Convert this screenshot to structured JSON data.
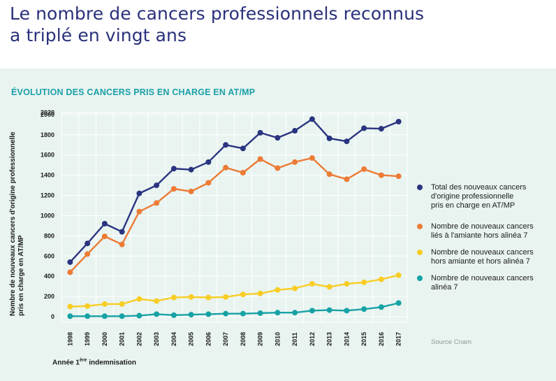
{
  "header": {
    "title_line1": "Le nombre de cancers professionnels reconnus",
    "title_line2": "a triplé en vingt ans"
  },
  "chart_data": {
    "type": "line",
    "title": "ÉVOLUTION DES CANCERS PRIS EN CHARGE EN AT/MP",
    "ylabel_line1": "Nombre de nouveaux cancers d'origine professionnelle",
    "ylabel_line2": "pris en charge en AT/MP",
    "xlabel_main": "Année 1",
    "xlabel_sup": "ère",
    "xlabel_rest": " indemnisation",
    "ylim": [
      0,
      2020
    ],
    "yticks": [
      0,
      200,
      400,
      600,
      800,
      1000,
      1200,
      1400,
      1600,
      1800,
      2000,
      2020
    ],
    "grid": true,
    "legend_position": "right",
    "source": "Source Cnam",
    "categories": [
      "1998",
      "1999",
      "2000",
      "2001",
      "2002",
      "2003",
      "2004",
      "2005",
      "2006",
      "2007",
      "2008",
      "2009",
      "2010",
      "2011",
      "2012",
      "2013",
      "2014",
      "2015",
      "2016",
      "2017"
    ],
    "series": [
      {
        "name_lines": [
          "Total des nouveaux cancers",
          "d'origine professionnelle",
          "pris en charge en AT/MP"
        ],
        "color": "#2a3480",
        "values": [
          540,
          725,
          920,
          840,
          1220,
          1300,
          1465,
          1455,
          1530,
          1700,
          1665,
          1820,
          1770,
          1840,
          1955,
          1765,
          1735,
          1865,
          1860,
          1930
        ]
      },
      {
        "name_lines": [
          "Nombre de nouveaux cancers",
          "liés à l'amiante hors alinéa 7"
        ],
        "color": "#ec7b35",
        "values": [
          440,
          620,
          795,
          715,
          1040,
          1125,
          1265,
          1240,
          1325,
          1475,
          1425,
          1560,
          1470,
          1530,
          1570,
          1410,
          1360,
          1460,
          1400,
          1390
        ]
      },
      {
        "name_lines": [
          "Nombre de nouveaux cancers",
          "hors amiante et hors alinéa 7"
        ],
        "color": "#f8cd25",
        "values": [
          100,
          105,
          125,
          125,
          175,
          155,
          190,
          195,
          190,
          195,
          220,
          230,
          265,
          280,
          325,
          295,
          325,
          340,
          370,
          410
        ]
      },
      {
        "name_lines": [
          "Nombre de nouveaux cancers",
          "alinéa 7"
        ],
        "color": "#16a2a5",
        "values": [
          5,
          5,
          5,
          5,
          10,
          25,
          15,
          20,
          25,
          30,
          30,
          35,
          40,
          40,
          60,
          65,
          60,
          75,
          95,
          135
        ]
      }
    ]
  }
}
